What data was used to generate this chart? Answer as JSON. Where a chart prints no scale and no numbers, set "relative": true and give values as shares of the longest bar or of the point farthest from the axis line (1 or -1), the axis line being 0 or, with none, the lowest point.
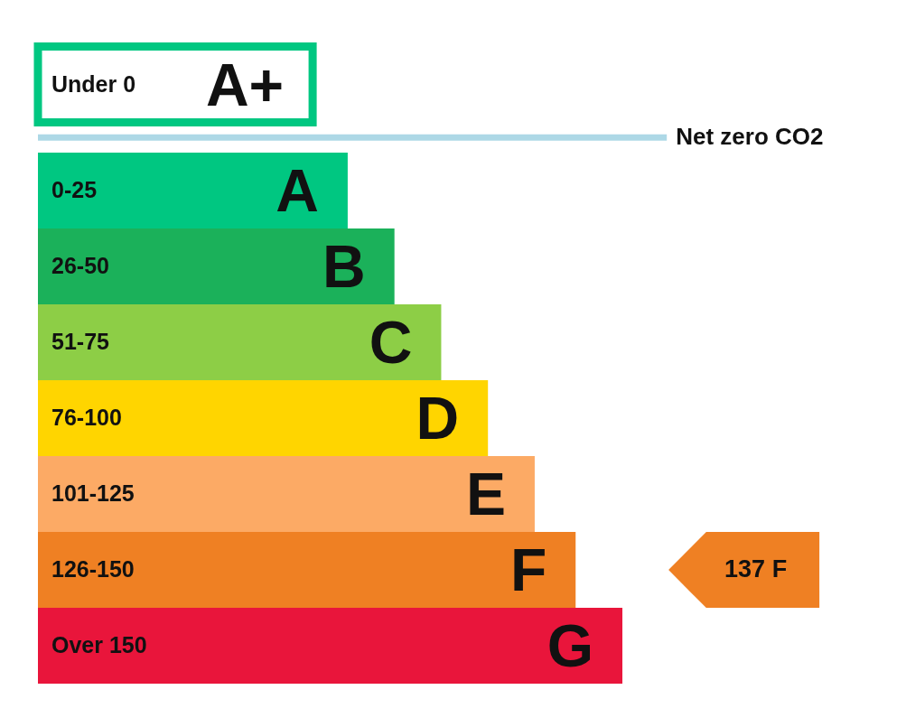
{
  "chart_data": {
    "type": "bar",
    "orientation": "horizontal",
    "relative": true,
    "categories": [
      "Under 0",
      "0-25",
      "26-50",
      "51-75",
      "76-100",
      "101-125",
      "126-150",
      "Over 150"
    ],
    "values": [
      0.47,
      0.53,
      0.61,
      0.69,
      0.77,
      0.85,
      0.92,
      1
    ],
    "colors": [
      "#ffffff",
      "#00c781",
      "#1bb15a",
      "#8dce46",
      "#ffd500",
      "#fcaa65",
      "#ef8023",
      "#e9153b"
    ],
    "ref_lines": [
      {
        "axis": "y",
        "value": "0-25",
        "label": "Net zero CO2",
        "color": "#add8e6"
      }
    ],
    "annotations": [
      {
        "text": "A+",
        "x": 0.47,
        "y": "Under 0"
      },
      {
        "text": "A",
        "x": 0.53,
        "y": "0-25"
      },
      {
        "text": "B",
        "x": 0.61,
        "y": "26-50"
      },
      {
        "text": "C",
        "x": 0.69,
        "y": "51-75"
      },
      {
        "text": "D",
        "x": 0.77,
        "y": "76-100"
      },
      {
        "text": "E",
        "x": 0.85,
        "y": "101-125"
      },
      {
        "text": "F",
        "x": 0.92,
        "y": "126-150"
      },
      {
        "text": "G",
        "x": 1,
        "y": "Over 150"
      },
      "137 F"
    ]
  }
}
